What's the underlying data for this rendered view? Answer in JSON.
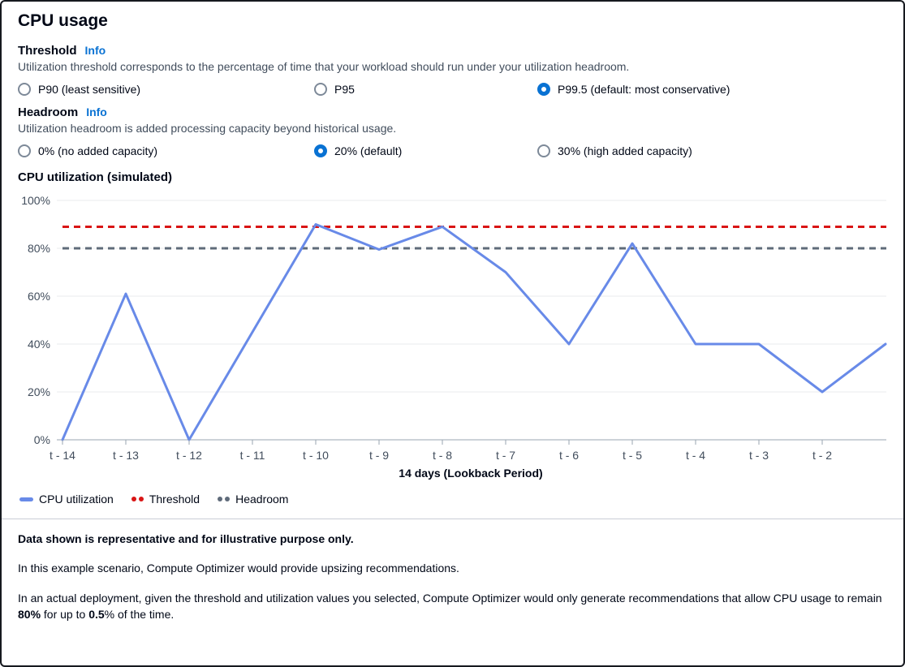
{
  "page": {
    "title": "CPU usage"
  },
  "threshold": {
    "heading": "Threshold",
    "info": "Info",
    "description": "Utilization threshold corresponds to the percentage of time that your workload should run under your utilization headroom.",
    "options": [
      {
        "label": "P90 (least sensitive)",
        "selected": false
      },
      {
        "label": "P95",
        "selected": false
      },
      {
        "label": "P99.5 (default: most conservative)",
        "selected": true
      }
    ]
  },
  "headroom": {
    "heading": "Headroom",
    "info": "Info",
    "description": "Utilization headroom is added processing capacity beyond historical usage.",
    "options": [
      {
        "label": "0% (no added capacity)",
        "selected": false
      },
      {
        "label": "20% (default)",
        "selected": true
      },
      {
        "label": "30% (high added capacity)",
        "selected": false
      }
    ]
  },
  "chart_section": {
    "heading": "CPU utilization (simulated)"
  },
  "chart_data": {
    "type": "line",
    "title": "CPU utilization (simulated)",
    "x_labels": [
      "t - 14",
      "t - 13",
      "t - 12",
      "t - 11",
      "t - 10",
      "t - 9",
      "t - 8",
      "t - 7",
      "t - 6",
      "t - 5",
      "t - 4",
      "t - 3",
      "t - 2",
      ""
    ],
    "series": [
      {
        "name": "CPU utilization",
        "color": "#688ae8",
        "values": [
          0,
          61,
          0,
          45,
          90,
          79.5,
          89,
          70,
          40,
          82,
          40,
          40,
          20,
          40
        ]
      }
    ],
    "reference_lines": [
      {
        "name": "Threshold",
        "value": 89,
        "color": "#d91515",
        "style": "dashed"
      },
      {
        "name": "Headroom",
        "value": 80,
        "color": "#5f6b7a",
        "style": "dashed"
      }
    ],
    "yticks": [
      {
        "value": 0,
        "label": "0%"
      },
      {
        "value": 20,
        "label": "20%"
      },
      {
        "value": 40,
        "label": "40%"
      },
      {
        "value": 60,
        "label": "60%"
      },
      {
        "value": 80,
        "label": "80%"
      },
      {
        "value": 100,
        "label": "100%"
      }
    ],
    "ylim": [
      0,
      100
    ],
    "xlabel": "14 days (Lookback Period)",
    "grid": true,
    "legend_position": "bottom-left"
  },
  "legend": {
    "items": [
      {
        "label": "CPU utilization",
        "marker": "line",
        "color": "#688ae8"
      },
      {
        "label": "Threshold",
        "marker": "dots",
        "color": "#d91515"
      },
      {
        "label": "Headroom",
        "marker": "dots",
        "color": "#5f6b7a"
      }
    ]
  },
  "footer": {
    "note_bold": "Data shown is representative and for illustrative purpose only.",
    "scenario": "In this example scenario, Compute Optimizer would provide upsizing recommendations.",
    "deployment_prefix": "In an actual deployment, given the threshold and utilization values you selected, Compute Optimizer would only generate recommendations that allow CPU usage to remain ",
    "deployment_bold_1": "80%",
    "deployment_middle": " for up to ",
    "deployment_bold_2": "0.5",
    "deployment_suffix": "% of the time."
  }
}
